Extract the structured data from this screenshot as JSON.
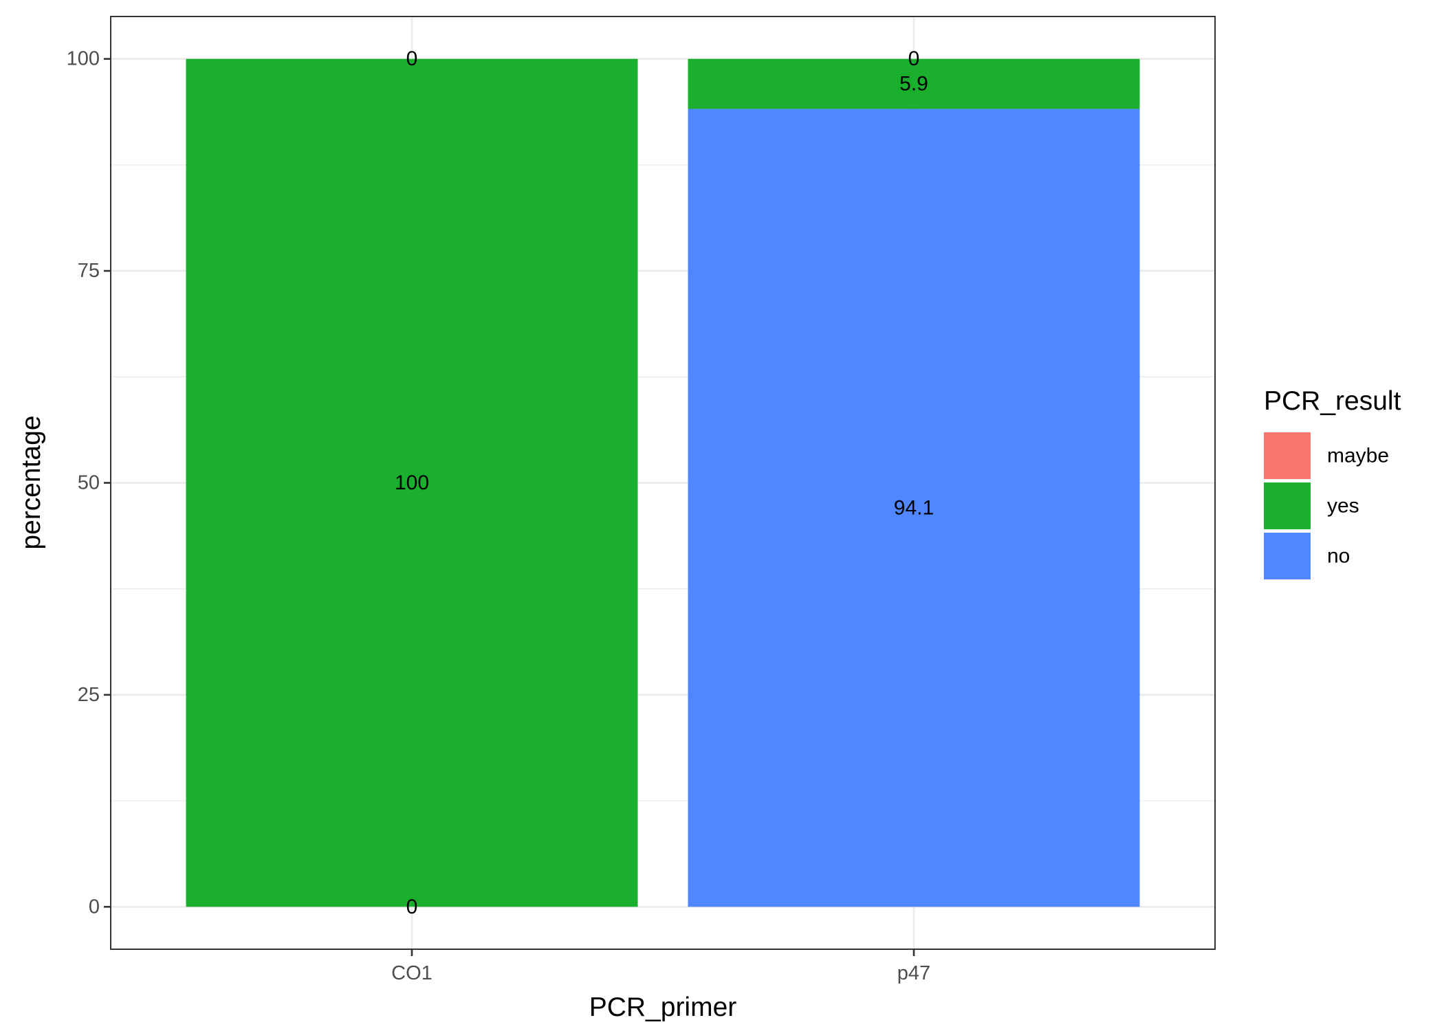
{
  "chart_data": {
    "type": "bar",
    "stacked": true,
    "xlabel": "PCR_primer",
    "ylabel": "percentage",
    "categories": [
      "CO1",
      "p47"
    ],
    "ylim": [
      -5,
      105
    ],
    "yticks": [
      0,
      25,
      50,
      75,
      100
    ],
    "ytick_labels": [
      "0",
      "25",
      "50",
      "75",
      "100"
    ],
    "grid": true,
    "legend": {
      "title": "PCR_result",
      "position": "right",
      "items": [
        {
          "name": "maybe",
          "color": "#F8766D"
        },
        {
          "name": "yes",
          "color": "#1AB02E"
        },
        {
          "name": "no",
          "color": "#5086FF"
        }
      ]
    },
    "series": [
      {
        "name": "maybe",
        "color": "#F8766D",
        "values": [
          0,
          0
        ]
      },
      {
        "name": "yes",
        "color": "#1AB02E",
        "values": [
          100,
          5.9
        ]
      },
      {
        "name": "no",
        "color": "#5086FF",
        "values": [
          0,
          94.1
        ]
      }
    ],
    "stack_order_bottom_to_top": [
      "no",
      "yes",
      "maybe"
    ],
    "data_labels": [
      {
        "category": "CO1",
        "series": "maybe",
        "text": "0"
      },
      {
        "category": "CO1",
        "series": "yes",
        "text": "100"
      },
      {
        "category": "CO1",
        "series": "no",
        "text": "0"
      },
      {
        "category": "p47",
        "series": "maybe",
        "text": "0"
      },
      {
        "category": "p47",
        "series": "yes",
        "text": "5.9"
      },
      {
        "category": "p47",
        "series": "no",
        "text": "94.1"
      }
    ]
  }
}
